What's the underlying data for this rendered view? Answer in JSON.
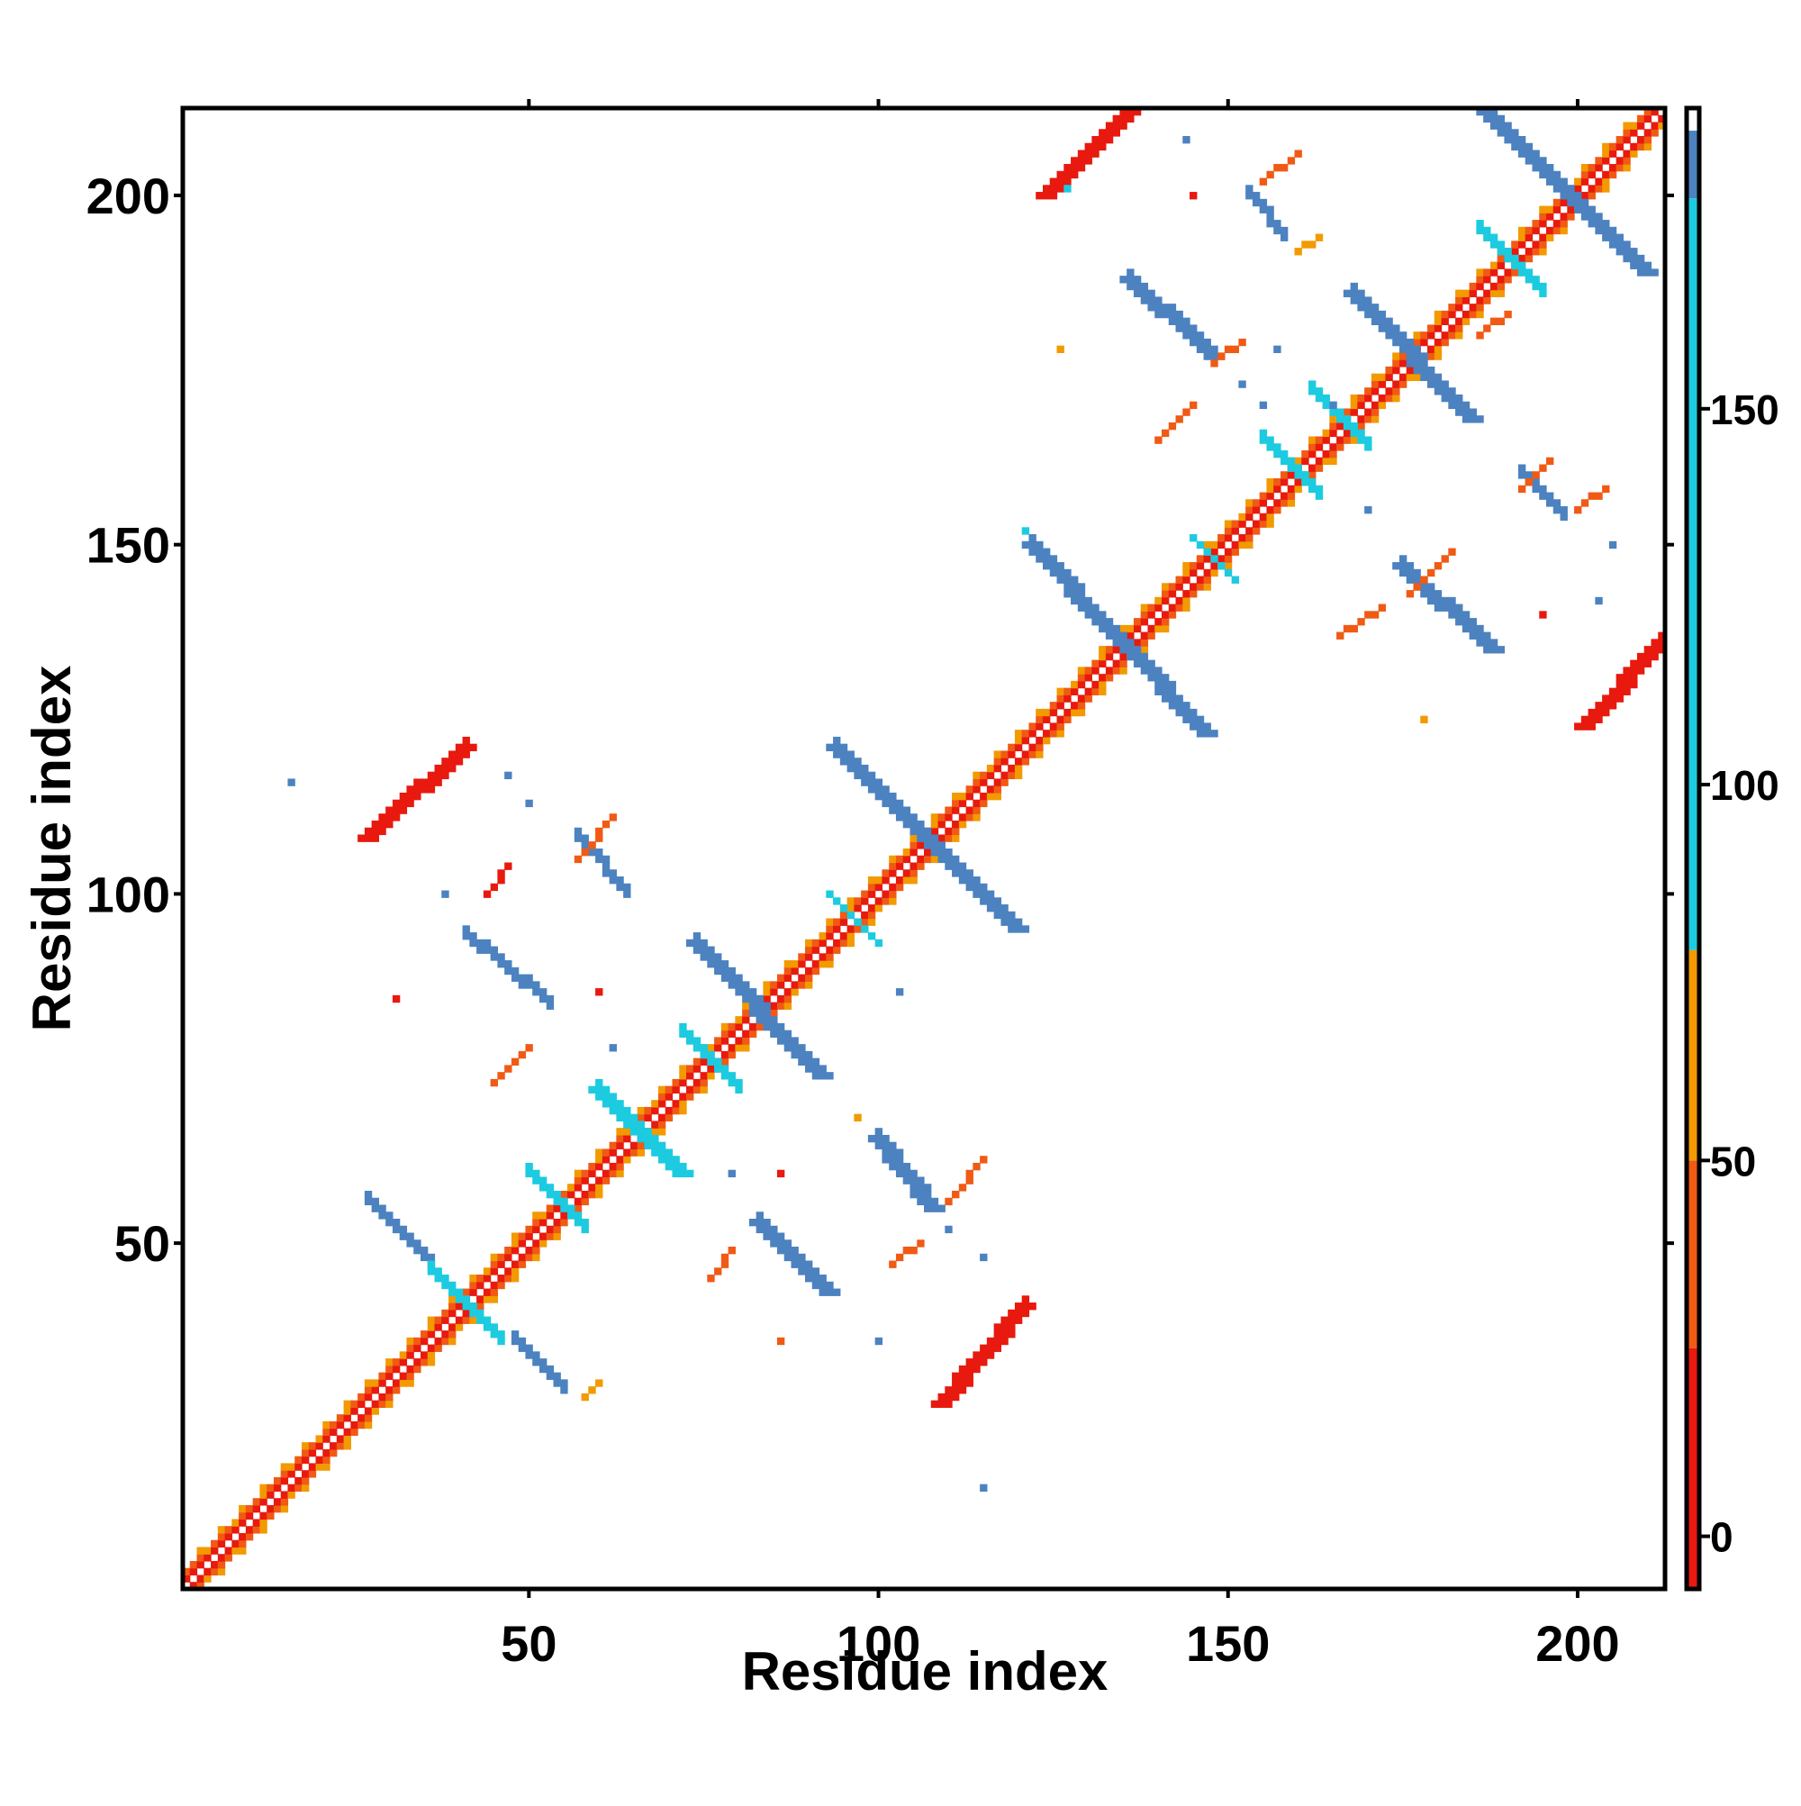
{
  "chart_data": {
    "type": "heatmap",
    "title": "",
    "xlabel": "Residue index",
    "ylabel": "Residue index",
    "xlim": [
      1,
      212
    ],
    "ylim": [
      1,
      212
    ],
    "x_ticks": [
      50,
      100,
      150,
      200
    ],
    "y_ticks": [
      50,
      100,
      150,
      200
    ],
    "grid": false,
    "colorbar": {
      "range": [
        -7,
        190
      ],
      "ticks": [
        0,
        50,
        100,
        150
      ],
      "segments": [
        {
          "from": -7,
          "to": 25,
          "color": "#e8190e"
        },
        {
          "from": 25,
          "to": 50,
          "color": "#f05a14"
        },
        {
          "from": 50,
          "to": 78,
          "color": "#f29a00"
        },
        {
          "from": 78,
          "to": 178,
          "color": "#1ccbe0"
        },
        {
          "from": 178,
          "to": 187,
          "color": "#4c82c0"
        },
        {
          "from": 187,
          "to": 190,
          "color": "#ffffff"
        }
      ]
    },
    "colors": {
      "red": "#e8190e",
      "orange_red": "#f05a14",
      "orange": "#f29a00",
      "cyan": "#1ccbe0",
      "blue": "#4c82c0"
    },
    "contacts": [
      {
        "kind": "diagonal",
        "from": 1,
        "to": 212
      },
      {
        "kind": "anti",
        "x1": 27,
        "y1": 56,
        "x2": 36,
        "y2": 47,
        "width": 1.6,
        "color": "#4c82c0"
      },
      {
        "kind": "anti",
        "x1": 48,
        "y1": 36,
        "x2": 55,
        "y2": 29,
        "width": 1.6,
        "color": "#4c82c0"
      },
      {
        "kind": "anti",
        "x1": 41,
        "y1": 94,
        "x2": 53,
        "y2": 84,
        "width": 1.8,
        "color": "#4c82c0"
      },
      {
        "kind": "anti",
        "x1": 57,
        "y1": 108,
        "x2": 64,
        "y2": 100,
        "width": 1.8,
        "color": "#4c82c0"
      },
      {
        "kind": "anti",
        "x1": 74,
        "y1": 93,
        "x2": 92,
        "y2": 74,
        "width": 2.2,
        "color": "#4c82c0"
      },
      {
        "kind": "anti",
        "x1": 83,
        "y1": 53,
        "x2": 93,
        "y2": 43,
        "width": 2.0,
        "color": "#4c82c0"
      },
      {
        "kind": "anti",
        "x1": 100,
        "y1": 65,
        "x2": 108,
        "y2": 55,
        "width": 2.0,
        "color": "#4c82c0"
      },
      {
        "kind": "anti",
        "x1": 94,
        "y1": 121,
        "x2": 120,
        "y2": 95,
        "width": 2.4,
        "color": "#4c82c0"
      },
      {
        "kind": "anti",
        "x1": 122,
        "y1": 150,
        "x2": 147,
        "y2": 123,
        "width": 2.2,
        "color": "#4c82c0"
      },
      {
        "kind": "anti",
        "x1": 136,
        "y1": 188,
        "x2": 148,
        "y2": 177,
        "width": 2.0,
        "color": "#4c82c0"
      },
      {
        "kind": "anti",
        "x1": 153,
        "y1": 200,
        "x2": 158,
        "y2": 194,
        "width": 1.6,
        "color": "#4c82c0"
      },
      {
        "kind": "anti",
        "x1": 168,
        "y1": 186,
        "x2": 185,
        "y2": 168,
        "width": 2.2,
        "color": "#4c82c0"
      },
      {
        "kind": "anti",
        "x1": 187,
        "y1": 212,
        "x2": 210,
        "y2": 189,
        "width": 2.2,
        "color": "#4c82c0"
      },
      {
        "kind": "anti",
        "x1": 175,
        "y1": 147,
        "x2": 188,
        "y2": 135,
        "width": 2.0,
        "color": "#4c82c0"
      },
      {
        "kind": "anti",
        "x1": 192,
        "y1": 160,
        "x2": 198,
        "y2": 154,
        "width": 1.6,
        "color": "#4c82c0"
      },
      {
        "kind": "anti",
        "x1": 60,
        "y1": 72,
        "x2": 72,
        "y2": 60,
        "width": 2.0,
        "color": "#1ccbe0"
      },
      {
        "kind": "anti",
        "x1": 72,
        "y1": 80,
        "x2": 80,
        "y2": 72,
        "width": 1.8,
        "color": "#1ccbe0"
      },
      {
        "kind": "anti",
        "x1": 50,
        "y1": 60,
        "x2": 58,
        "y2": 52,
        "width": 1.6,
        "color": "#1ccbe0"
      },
      {
        "kind": "anti",
        "x1": 36,
        "y1": 46,
        "x2": 46,
        "y2": 36,
        "width": 1.6,
        "color": "#1ccbe0"
      },
      {
        "kind": "anti",
        "x1": 155,
        "y1": 165,
        "x2": 163,
        "y2": 157,
        "width": 1.8,
        "color": "#1ccbe0"
      },
      {
        "kind": "anti",
        "x1": 162,
        "y1": 172,
        "x2": 170,
        "y2": 164,
        "width": 1.8,
        "color": "#1ccbe0"
      },
      {
        "kind": "anti",
        "x1": 93,
        "y1": 100,
        "x2": 100,
        "y2": 93,
        "width": 1.4,
        "color": "#1ccbe0"
      },
      {
        "kind": "anti",
        "x1": 145,
        "y1": 151,
        "x2": 151,
        "y2": 145,
        "width": 1.4,
        "color": "#1ccbe0"
      },
      {
        "kind": "anti",
        "x1": 186,
        "y1": 195,
        "x2": 195,
        "y2": 186,
        "width": 1.6,
        "color": "#1ccbe0"
      },
      {
        "kind": "par",
        "x1": 27,
        "y1": 108,
        "x2": 41,
        "y2": 121,
        "width": 2.0,
        "color": "#e8190e"
      },
      {
        "kind": "par",
        "x1": 109,
        "y1": 27,
        "x2": 121,
        "y2": 41,
        "width": 2.0,
        "color": "#e8190e"
      },
      {
        "kind": "par",
        "x1": 124,
        "y1": 200,
        "x2": 136,
        "y2": 212,
        "width": 2.0,
        "color": "#e8190e"
      },
      {
        "kind": "par",
        "x1": 201,
        "y1": 124,
        "x2": 212,
        "y2": 136,
        "width": 2.0,
        "color": "#e8190e"
      },
      {
        "kind": "par",
        "x1": 57,
        "y1": 105,
        "x2": 62,
        "y2": 111,
        "width": 1.0,
        "color": "#f05a14"
      },
      {
        "kind": "par",
        "x1": 44,
        "y1": 100,
        "x2": 47,
        "y2": 104,
        "width": 1.0,
        "color": "#e8190e"
      },
      {
        "kind": "par",
        "x1": 45,
        "y1": 73,
        "x2": 50,
        "y2": 78,
        "width": 1.0,
        "color": "#f05a14"
      },
      {
        "kind": "par",
        "x1": 58,
        "y1": 28,
        "x2": 60,
        "y2": 30,
        "width": 1.0,
        "color": "#f29a00"
      },
      {
        "kind": "par",
        "x1": 76,
        "y1": 45,
        "x2": 79,
        "y2": 49,
        "width": 1.0,
        "color": "#f05a14"
      },
      {
        "kind": "par",
        "x1": 110,
        "y1": 56,
        "x2": 115,
        "y2": 62,
        "width": 1.0,
        "color": "#f05a14"
      },
      {
        "kind": "par",
        "x1": 102,
        "y1": 47,
        "x2": 106,
        "y2": 50,
        "width": 1.0,
        "color": "#f05a14"
      },
      {
        "kind": "par",
        "x1": 155,
        "y1": 202,
        "x2": 160,
        "y2": 206,
        "width": 1.0,
        "color": "#f05a14"
      },
      {
        "kind": "par",
        "x1": 160,
        "y1": 192,
        "x2": 163,
        "y2": 194,
        "width": 1.0,
        "color": "#f29a00"
      },
      {
        "kind": "par",
        "x1": 148,
        "y1": 176,
        "x2": 152,
        "y2": 179,
        "width": 1.0,
        "color": "#f05a14"
      },
      {
        "kind": "par",
        "x1": 176,
        "y1": 143,
        "x2": 182,
        "y2": 149,
        "width": 1.0,
        "color": "#f05a14"
      },
      {
        "kind": "par",
        "x1": 192,
        "y1": 158,
        "x2": 196,
        "y2": 162,
        "width": 1.0,
        "color": "#f05a14"
      },
      {
        "kind": "par",
        "x1": 166,
        "y1": 137,
        "x2": 172,
        "y2": 141,
        "width": 1.0,
        "color": "#f05a14"
      },
      {
        "kind": "par",
        "x1": 200,
        "y1": 155,
        "x2": 204,
        "y2": 158,
        "width": 1.0,
        "color": "#f05a14"
      },
      {
        "kind": "par",
        "x1": 140,
        "y1": 165,
        "x2": 145,
        "y2": 170,
        "width": 1.0,
        "color": "#f05a14"
      },
      {
        "kind": "par",
        "x1": 186,
        "y1": 180,
        "x2": 190,
        "y2": 183,
        "width": 1.0,
        "color": "#f05a14"
      }
    ],
    "points": [
      {
        "x": 16,
        "y": 116,
        "color": "#4c82c0"
      },
      {
        "x": 38,
        "y": 100,
        "color": "#4c82c0"
      },
      {
        "x": 47,
        "y": 117,
        "color": "#4c82c0"
      },
      {
        "x": 50,
        "y": 113,
        "color": "#4c82c0"
      },
      {
        "x": 31,
        "y": 85,
        "color": "#e8190e"
      },
      {
        "x": 60,
        "y": 86,
        "color": "#e8190e"
      },
      {
        "x": 62,
        "y": 78,
        "color": "#4c82c0"
      },
      {
        "x": 86,
        "y": 36,
        "color": "#f05a14"
      },
      {
        "x": 100,
        "y": 36,
        "color": "#4c82c0"
      },
      {
        "x": 115,
        "y": 15,
        "color": "#4c82c0"
      },
      {
        "x": 110,
        "y": 52,
        "color": "#4c82c0"
      },
      {
        "x": 115,
        "y": 48,
        "color": "#4c82c0"
      },
      {
        "x": 103,
        "y": 86,
        "color": "#4c82c0"
      },
      {
        "x": 79,
        "y": 60,
        "color": "#4c82c0"
      },
      {
        "x": 86,
        "y": 60,
        "color": "#e8190e"
      },
      {
        "x": 97,
        "y": 68,
        "color": "#f29a00"
      },
      {
        "x": 126,
        "y": 178,
        "color": "#f29a00"
      },
      {
        "x": 144,
        "y": 208,
        "color": "#4c82c0"
      },
      {
        "x": 145,
        "y": 200,
        "color": "#e8190e"
      },
      {
        "x": 152,
        "y": 173,
        "color": "#4c82c0"
      },
      {
        "x": 155,
        "y": 170,
        "color": "#4c82c0"
      },
      {
        "x": 157,
        "y": 178,
        "color": "#4c82c0"
      },
      {
        "x": 165,
        "y": 170,
        "color": "#4c82c0"
      },
      {
        "x": 170,
        "y": 155,
        "color": "#4c82c0"
      },
      {
        "x": 178,
        "y": 125,
        "color": "#f29a00"
      },
      {
        "x": 195,
        "y": 140,
        "color": "#e8190e"
      },
      {
        "x": 203,
        "y": 142,
        "color": "#4c82c0"
      },
      {
        "x": 205,
        "y": 150,
        "color": "#4c82c0"
      },
      {
        "x": 121,
        "y": 152,
        "color": "#1ccbe0"
      },
      {
        "x": 127,
        "y": 201,
        "color": "#1ccbe0"
      }
    ]
  }
}
